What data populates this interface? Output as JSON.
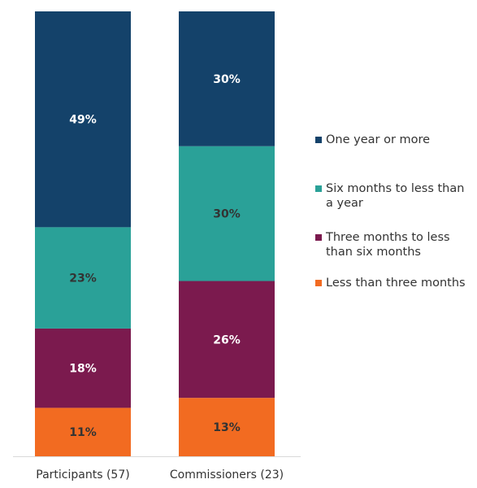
{
  "chart_data": {
    "type": "bar",
    "stacked": true,
    "percent": true,
    "categories": [
      "Participants (57)",
      "Commissioners (23)"
    ],
    "series": [
      {
        "name": "Less than three months",
        "values": [
          11,
          13
        ],
        "labels": [
          "11%",
          "13%"
        ],
        "color": "#F26B21",
        "label_color": "#333333"
      },
      {
        "name": "Three months to less than six months",
        "values": [
          18,
          26
        ],
        "labels": [
          "18%",
          "26%"
        ],
        "color": "#7B1A4E",
        "label_color": "#ffffff"
      },
      {
        "name": "Six months to less than a year",
        "values": [
          23,
          30
        ],
        "labels": [
          "23%",
          "30%"
        ],
        "color": "#2AA198",
        "label_color": "#333333"
      },
      {
        "name": "One year or more",
        "values": [
          49,
          30
        ],
        "labels": [
          "49%",
          "30%"
        ],
        "color": "#14426A",
        "label_color": "#ffffff"
      }
    ],
    "legend_order": [
      3,
      2,
      1,
      0
    ],
    "legend": [
      [
        "One year or more"
      ],
      [
        "Six months to less than",
        "a year"
      ],
      [
        "Three months to less",
        "than six months"
      ],
      [
        "Less than three months"
      ]
    ],
    "legend_position": "right",
    "grid": false,
    "axis_line_color": "#d9d9d9"
  }
}
